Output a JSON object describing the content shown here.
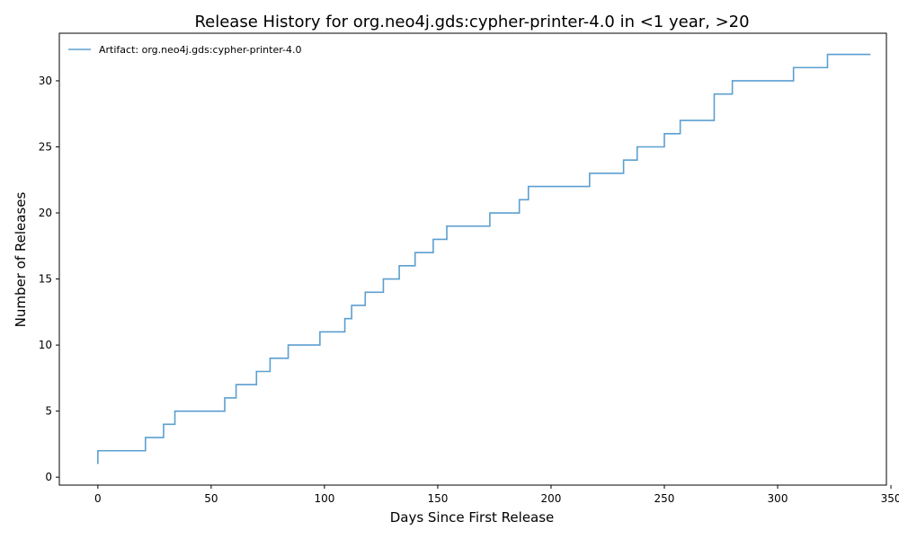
{
  "chart_data": {
    "type": "line",
    "title": "Release History for org.neo4j.gds:cypher-printer-4.0 in <1 year, >20",
    "xlabel": "Days Since First Release",
    "ylabel": "Number of Releases",
    "xlim": [
      -17,
      348
    ],
    "ylim": [
      -0.6,
      33.6
    ],
    "xticks": [
      0,
      50,
      100,
      150,
      200,
      250,
      300,
      350
    ],
    "yticks": [
      0,
      5,
      10,
      15,
      20,
      25,
      30
    ],
    "grid": false,
    "legend_position": "top-left",
    "series": [
      {
        "name": "Artifact: org.neo4j.gds:cypher-printer-4.0",
        "color": "#5b9fd0",
        "step": "post",
        "x": [
          0,
          0,
          21,
          29,
          34,
          56,
          61,
          70,
          76,
          84,
          98,
          109,
          112,
          118,
          126,
          133,
          140,
          148,
          154,
          173,
          186,
          190,
          217,
          232,
          238,
          250,
          257,
          272,
          280,
          307,
          322,
          341
        ],
        "y": [
          1,
          2,
          3,
          4,
          5,
          6,
          7,
          8,
          9,
          10,
          11,
          12,
          13,
          14,
          15,
          16,
          17,
          18,
          19,
          20,
          21,
          22,
          23,
          24,
          25,
          26,
          27,
          29,
          30,
          31,
          32,
          32
        ]
      }
    ]
  }
}
